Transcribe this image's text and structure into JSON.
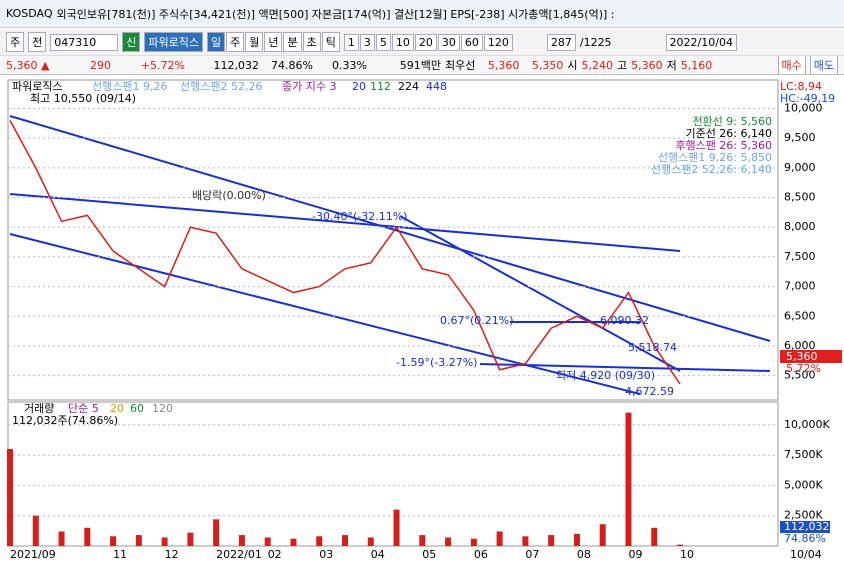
{
  "title_bar": {
    "market": "KOSDAQ",
    "info": "외국인보유[781(천)] 주식수[34,421(천)] 액면[500] 자본금[174(억)] 결산[12월] EPS[-238] 시가총액[1,845(억)] :"
  },
  "toolbar": {
    "items": [
      "주",
      "전"
    ],
    "code": "047310",
    "flag": "신",
    "name": "파워로직스",
    "periods": [
      "일",
      "주",
      "월",
      "년",
      "분",
      "초",
      "틱"
    ],
    "intervals": [
      "1",
      "3",
      "5",
      "10",
      "20",
      "30",
      "60",
      "120"
    ],
    "position": "287",
    "total": "/1225",
    "date": "2022/10/04"
  },
  "quote": {
    "price": "5,360 ▲",
    "change": "290",
    "rate": "+5.72%",
    "volume": "112,032",
    "vol_rate": "74.86%",
    "turnover": "0.33%",
    "amount": "591백만",
    "best_label": "최우선",
    "best_ask": "5,360",
    "best_bid": "5,350",
    "open_label": "시",
    "open": "5,240",
    "high_label": "고",
    "high": "5,360",
    "low_label": "저",
    "low": "5,160",
    "buy": "매수",
    "sell": "매도"
  },
  "chart_data": [
    {
      "type": "line",
      "title": "파워로직스",
      "legend": [
        "선행스팬1 9,26",
        "선행스팬2 52,26",
        "종가 지수 3",
        "20",
        "112",
        "224",
        "448"
      ],
      "high_label": "최고 10,550 (09/14)",
      "lc": "LC:8,94",
      "hc": "HC:-49,19",
      "indicator_labels": [
        "전환선 9: 5,560",
        "기준선 26: 6,140",
        "후행스팬 26: 5,360",
        "선행스팬1 9,26: 5,850",
        "선행스팬2 52,26: 6,140"
      ],
      "annotations": [
        "배당락(0.00%)",
        "-30.40°(-32.11%)",
        "0.67°(0.21%)",
        "6,090.32",
        "5,518.74",
        "-1.59°(-3.27%)",
        "최저 4,920 (09/30)",
        "4,672.59"
      ],
      "last_price_label": "5,360",
      "last_rate_label": "5.72%",
      "categories": [
        "2021/09",
        null,
        null,
        null,
        "11",
        null,
        "12",
        null,
        "2022/01",
        null,
        "02",
        null,
        "03",
        null,
        "04",
        null,
        "05",
        null,
        "06",
        null,
        "07",
        null,
        "08",
        null,
        "09",
        null,
        "10"
      ],
      "series": [
        {
          "color": "#d4201c",
          "values": [
            9800,
            9000,
            8100,
            8200,
            7600,
            7300,
            7000,
            8000,
            7900,
            7300,
            7100,
            6900,
            7000,
            7300,
            7400,
            8000,
            7300,
            7200,
            6600,
            5600,
            5700,
            6300,
            6500,
            6300,
            6900,
            6000,
            5360
          ]
        }
      ],
      "ylim": [
        5090,
        10480
      ],
      "yticks": [
        {
          "value": 5500,
          "label": "5,500"
        },
        {
          "value": 6000,
          "label": "6,000"
        },
        {
          "value": 6500,
          "label": "6,500"
        },
        {
          "value": 7000,
          "label": "7,000"
        },
        {
          "value": 7500,
          "label": "7,500"
        },
        {
          "value": 8000,
          "label": "8,000"
        },
        {
          "value": 8500,
          "label": "8,500"
        },
        {
          "value": 9000,
          "label": "9,000"
        },
        {
          "value": 9500,
          "label": "9,500"
        },
        {
          "value": 10000,
          "label": "10,000"
        }
      ],
      "grid": true
    },
    {
      "type": "bar",
      "title": "거래량",
      "legend": [
        "단순 5",
        "20",
        "60",
        "120"
      ],
      "summary": "112,032주(74.86%)",
      "last_labels": [
        "112,032",
        "74.86%"
      ],
      "date_label": "10/04",
      "values": [
        8000,
        2500,
        1200,
        1500,
        800,
        900,
        700,
        1100,
        2200,
        900,
        700,
        600,
        800,
        900,
        700,
        3000,
        900,
        700,
        600,
        1200,
        800,
        900,
        1000,
        1800,
        11000,
        1500,
        112
      ],
      "color": "#d4201c",
      "ylim": [
        0,
        11880
      ],
      "yticks": [
        {
          "value": 2500,
          "label": "2,500K"
        },
        {
          "value": 5000,
          "label": "5,000K"
        },
        {
          "value": 7500,
          "label": "7,500K"
        },
        {
          "value": 10000,
          "label": "10,000K"
        }
      ],
      "grid": true
    }
  ]
}
